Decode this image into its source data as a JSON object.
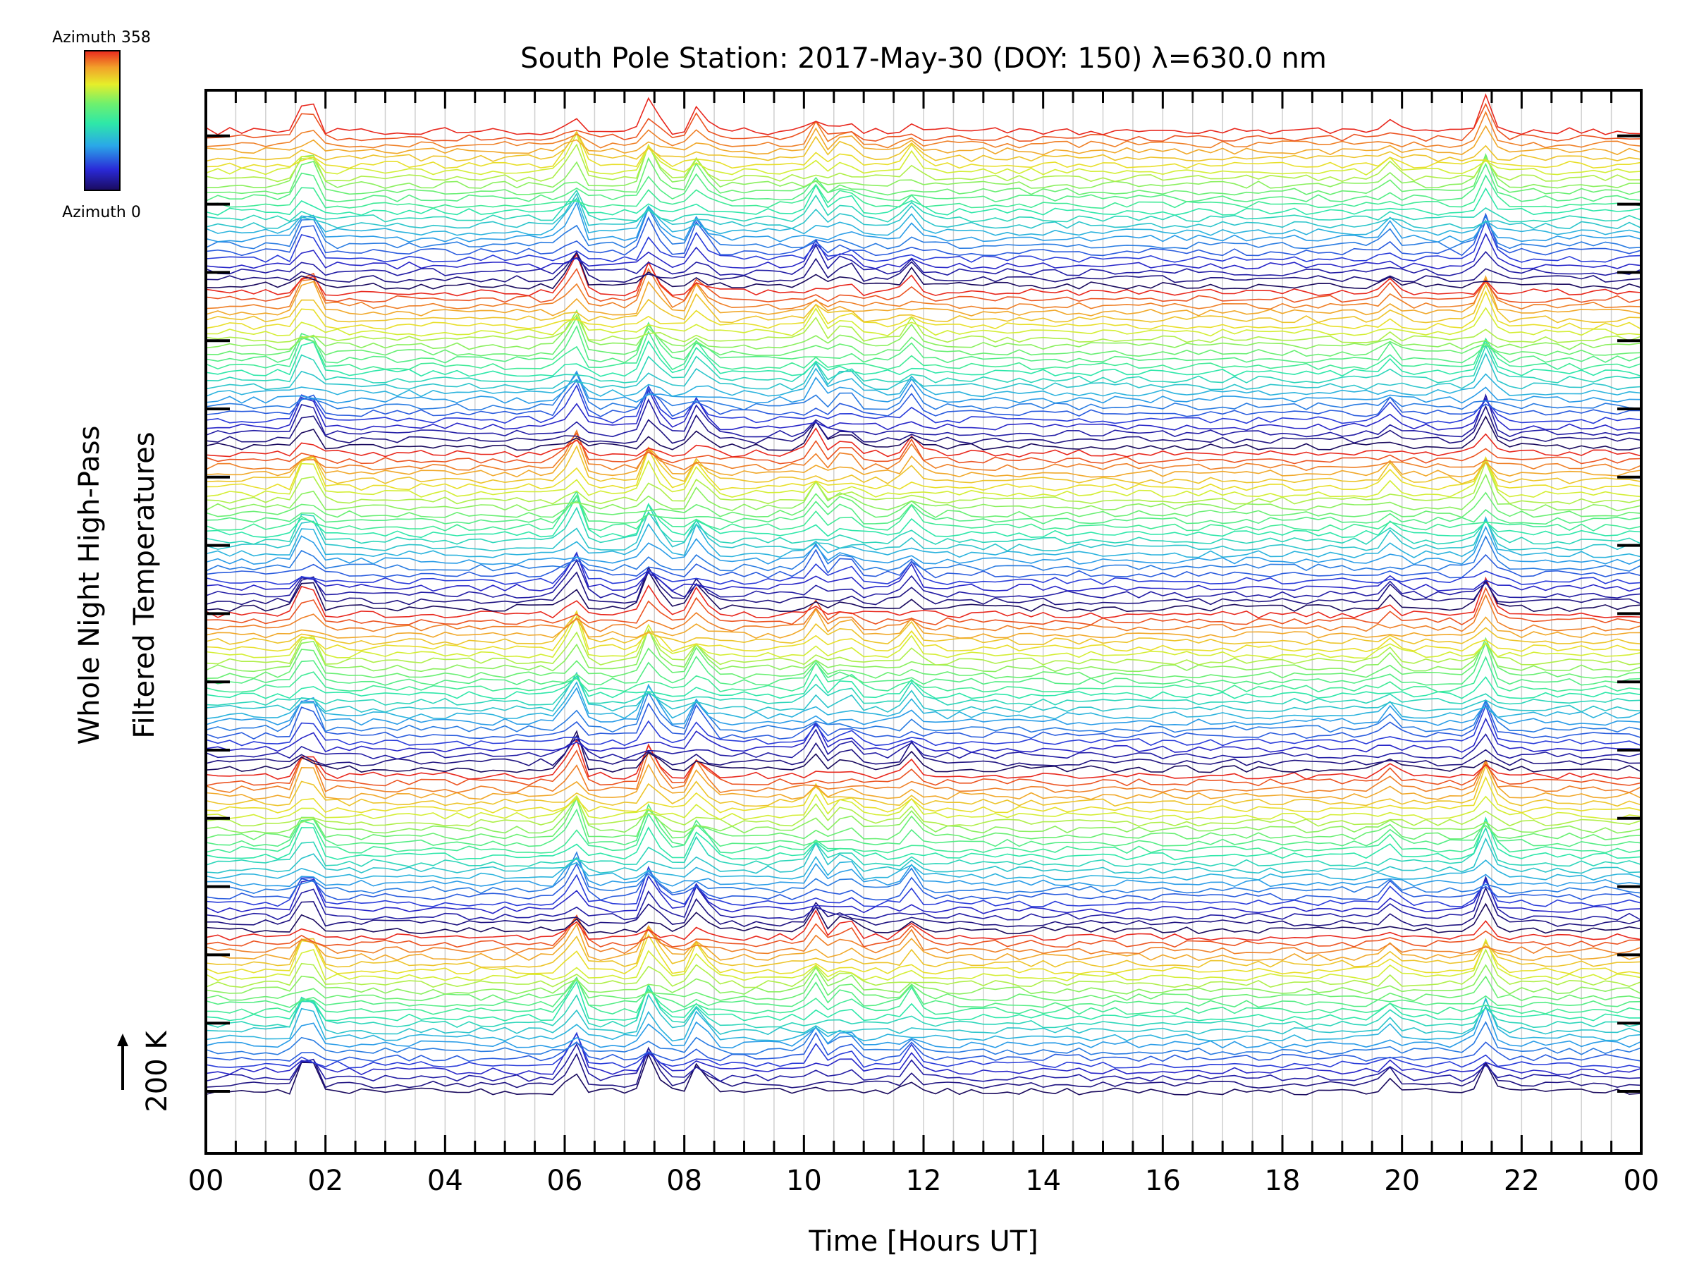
{
  "chart_data": {
    "type": "line",
    "title": "South Pole Station: 2017-May-30 (DOY: 150) λ=630.0 nm",
    "xlabel": "Time [Hours UT]",
    "ylabel_line1": "Whole Night High-Pass",
    "ylabel_line2": "Filtered Temperatures",
    "scale_label": "200 K",
    "xlim": [
      0,
      24
    ],
    "x_tick_labels": [
      "00",
      "02",
      "04",
      "06",
      "08",
      "10",
      "12",
      "14",
      "16",
      "18",
      "20",
      "22",
      "00"
    ],
    "x_tick_hours": [
      0,
      2,
      4,
      6,
      8,
      10,
      12,
      14,
      16,
      18,
      20,
      22,
      24
    ],
    "grid": true,
    "colorbar": {
      "top_label": "Azimuth 358",
      "bottom_label": "Azimuth 0",
      "min": 0,
      "max": 358
    },
    "series_groups": 6,
    "series_per_group": 24,
    "sample_interval_hours": 0.2,
    "events": [
      {
        "t": 1.7,
        "amp": 2.6
      },
      {
        "t": 6.15,
        "amp": 2.4
      },
      {
        "t": 7.45,
        "amp": 2.4
      },
      {
        "t": 8.25,
        "amp": 1.8
      },
      {
        "t": 10.2,
        "amp": 1.4
      },
      {
        "t": 10.7,
        "amp": 1.3
      },
      {
        "t": 11.8,
        "amp": 1.2
      },
      {
        "t": 19.8,
        "amp": 0.9
      },
      {
        "t": 21.4,
        "amp": 2.2
      }
    ]
  }
}
